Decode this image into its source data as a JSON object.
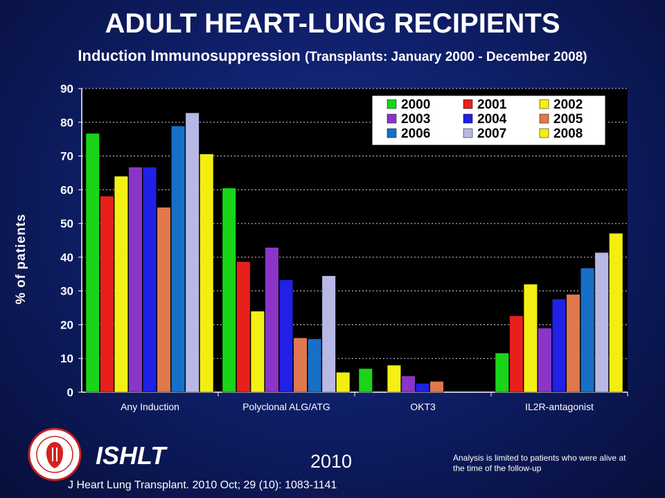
{
  "header": {
    "title": "ADULT HEART-LUNG RECIPIENTS",
    "subtitle_main": "Induction Immunosuppression",
    "subtitle_paren": "(Transplants: January 2000  - December 2008)"
  },
  "footer": {
    "org": "ISHLT",
    "year": "2010",
    "note": "Analysis is limited to patients who were alive at the time of the follow-up",
    "citation": "J Heart Lung Transplant. 2010 Oct; 29 (10): 1083-1141"
  },
  "colors": {
    "2000": "#19d419",
    "2001": "#e8201c",
    "2002": "#f4f015",
    "2003": "#8a35c8",
    "2004": "#2020e6",
    "2005": "#e0784d",
    "2006": "#1670c8",
    "2007": "#b8b8e6",
    "2008": "#f2ee10",
    "plot_bg": "#000000",
    "grid": "#d8d8d8"
  },
  "chart_data": {
    "type": "bar",
    "title": "ADULT HEART-LUNG RECIPIENTS",
    "subtitle": "Induction Immunosuppression (Transplants: January 2000  - December 2008)",
    "xlabel": "",
    "ylabel": "% of patients",
    "ylim": [
      0,
      90
    ],
    "yticks": [
      0,
      10,
      20,
      30,
      40,
      50,
      60,
      70,
      80,
      90
    ],
    "grid": true,
    "legend_position": "top-right",
    "categories": [
      "Any Induction",
      "Polyclonal ALG/ATG",
      "OKT3",
      "IL2R-antagonist"
    ],
    "series": [
      {
        "name": "2000",
        "values": [
          76.7,
          60.5,
          7.0,
          11.6
        ]
      },
      {
        "name": "2001",
        "values": [
          58.1,
          38.7,
          0,
          22.6
        ]
      },
      {
        "name": "2002",
        "values": [
          64.0,
          24.0,
          8.0,
          32.0
        ]
      },
      {
        "name": "2003",
        "values": [
          66.7,
          42.9,
          4.8,
          19.0
        ]
      },
      {
        "name": "2004",
        "values": [
          66.7,
          33.3,
          2.6,
          27.6
        ]
      },
      {
        "name": "2005",
        "values": [
          54.8,
          16.1,
          3.2,
          29.0
        ]
      },
      {
        "name": "2006",
        "values": [
          78.9,
          15.8,
          0,
          36.8
        ]
      },
      {
        "name": "2007",
        "values": [
          82.8,
          34.5,
          0,
          41.4
        ]
      },
      {
        "name": "2008",
        "values": [
          70.6,
          5.9,
          0,
          47.1
        ]
      }
    ]
  }
}
